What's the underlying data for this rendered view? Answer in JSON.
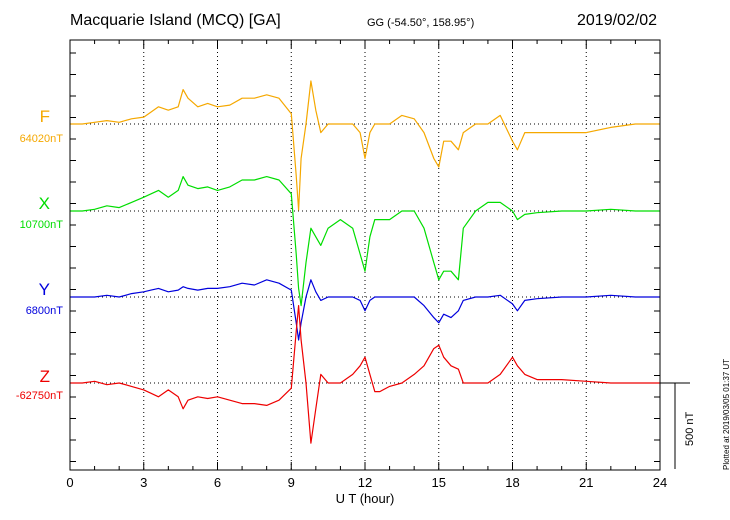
{
  "header": {
    "title": "Macquarie Island (MCQ)  [GA]",
    "coordinates": "GG (-54.50°, 158.95°)",
    "date": "2019/02/02"
  },
  "footer": {
    "plotted": "Plotted at 2019/03/05 01:37 UT"
  },
  "chart_data": {
    "type": "line",
    "xlabel": "U T (hour)",
    "xlim": [
      0,
      24
    ],
    "xticks": [
      "0",
      "3",
      "6",
      "9",
      "12",
      "15",
      "18",
      "21",
      "24"
    ],
    "ylabel": "",
    "scale_bar": "500 nT",
    "scale_bar_nT": 500,
    "grid": true,
    "series": [
      {
        "name": "F",
        "baseline": "64020nT",
        "baseline_nT": 64020,
        "color": "#f5a800",
        "x": [
          0,
          0.5,
          1,
          1.5,
          2,
          2.5,
          3,
          3.3,
          3.6,
          4,
          4.4,
          4.6,
          4.8,
          5.2,
          5.6,
          6,
          6.5,
          7,
          7.5,
          8,
          8.5,
          9,
          9.2,
          9.3,
          9.4,
          9.6,
          9.8,
          10,
          10.2,
          10.5,
          11,
          11.5,
          11.8,
          12,
          12.2,
          12.4,
          12.6,
          13,
          13.5,
          14,
          14.4,
          14.8,
          15,
          15.2,
          15.5,
          15.8,
          16,
          16.5,
          17,
          17.5,
          18,
          18.2,
          18.5,
          19,
          20,
          21,
          22,
          23,
          24
        ],
        "values": [
          0,
          0,
          10,
          20,
          10,
          30,
          40,
          70,
          100,
          80,
          100,
          200,
          150,
          100,
          120,
          100,
          110,
          150,
          150,
          170,
          150,
          60,
          -300,
          -500,
          -200,
          0,
          250,
          80,
          -50,
          0,
          0,
          0,
          -50,
          -200,
          -50,
          0,
          0,
          0,
          50,
          30,
          -50,
          -200,
          -250,
          -100,
          -100,
          -150,
          -50,
          0,
          0,
          50,
          -100,
          -150,
          -50,
          -50,
          -50,
          -50,
          -20,
          0,
          0
        ]
      },
      {
        "name": "X",
        "baseline": "10700nT",
        "baseline_nT": 10700,
        "color": "#00dd00",
        "x": [
          0,
          0.5,
          1,
          1.5,
          2,
          2.5,
          3,
          3.3,
          3.6,
          4,
          4.4,
          4.6,
          4.8,
          5.2,
          5.6,
          6,
          6.5,
          7,
          7.5,
          8,
          8.5,
          9,
          9.2,
          9.3,
          9.4,
          9.6,
          9.8,
          10,
          10.2,
          10.5,
          11,
          11.5,
          11.8,
          12,
          12.2,
          12.4,
          12.6,
          13,
          13.5,
          14,
          14.4,
          14.8,
          15,
          15.2,
          15.5,
          15.8,
          16,
          16.5,
          17,
          17.5,
          18,
          18.2,
          18.5,
          19,
          20,
          21,
          22,
          23,
          24
        ],
        "values": [
          0,
          0,
          10,
          30,
          20,
          50,
          80,
          100,
          120,
          80,
          120,
          200,
          150,
          130,
          140,
          120,
          140,
          180,
          180,
          200,
          180,
          100,
          -250,
          -450,
          -550,
          -300,
          -100,
          -150,
          -200,
          -100,
          -50,
          -100,
          -250,
          -350,
          -150,
          -50,
          -50,
          -50,
          0,
          0,
          -100,
          -300,
          -400,
          -350,
          -350,
          -400,
          -100,
          0,
          50,
          50,
          0,
          -50,
          -20,
          -10,
          0,
          0,
          10,
          0,
          0
        ]
      },
      {
        "name": "Y",
        "baseline": "6800nT",
        "baseline_nT": 6800,
        "color": "#0000dd",
        "x": [
          0,
          0.5,
          1,
          1.5,
          2,
          2.5,
          3,
          3.3,
          3.6,
          4,
          4.4,
          4.6,
          4.8,
          5.2,
          5.6,
          6,
          6.5,
          7,
          7.5,
          8,
          8.5,
          9,
          9.2,
          9.3,
          9.4,
          9.6,
          9.8,
          10,
          10.2,
          10.5,
          11,
          11.5,
          11.8,
          12,
          12.2,
          12.4,
          12.6,
          13,
          13.5,
          14,
          14.4,
          14.8,
          15,
          15.2,
          15.5,
          15.8,
          16,
          16.5,
          17,
          17.5,
          18,
          18.2,
          18.5,
          19,
          20,
          21,
          22,
          23,
          24
        ],
        "values": [
          0,
          0,
          0,
          10,
          0,
          20,
          30,
          40,
          50,
          30,
          40,
          60,
          50,
          40,
          50,
          50,
          60,
          80,
          70,
          100,
          80,
          40,
          -150,
          -250,
          -150,
          0,
          100,
          30,
          -20,
          0,
          0,
          0,
          -20,
          -80,
          -20,
          0,
          0,
          0,
          0,
          0,
          -50,
          -120,
          -150,
          -100,
          -120,
          -80,
          -20,
          0,
          0,
          10,
          -40,
          -80,
          -20,
          -10,
          0,
          0,
          10,
          0,
          0
        ]
      },
      {
        "name": "Z",
        "baseline": "-62750nT",
        "baseline_nT": -62750,
        "color": "#ee0000",
        "x": [
          0,
          0.5,
          1,
          1.5,
          2,
          2.5,
          3,
          3.3,
          3.6,
          4,
          4.4,
          4.6,
          4.8,
          5.2,
          5.6,
          6,
          6.5,
          7,
          7.5,
          8,
          8.5,
          9,
          9.2,
          9.3,
          9.4,
          9.6,
          9.8,
          10,
          10.2,
          10.5,
          11,
          11.5,
          11.8,
          12,
          12.2,
          12.4,
          12.6,
          13,
          13.5,
          14,
          14.4,
          14.8,
          15,
          15.2,
          15.5,
          15.8,
          16,
          16.5,
          17,
          17.5,
          18,
          18.2,
          18.5,
          19,
          20,
          21,
          22,
          23,
          24
        ],
        "values": [
          0,
          0,
          10,
          -10,
          0,
          -20,
          -40,
          -60,
          -80,
          -40,
          -80,
          -150,
          -100,
          -80,
          -90,
          -80,
          -100,
          -120,
          -120,
          -130,
          -100,
          -30,
          300,
          450,
          250,
          0,
          -350,
          -150,
          50,
          0,
          0,
          50,
          100,
          150,
          50,
          -50,
          -50,
          -20,
          0,
          50,
          100,
          200,
          220,
          150,
          100,
          80,
          0,
          0,
          0,
          50,
          150,
          100,
          50,
          20,
          20,
          10,
          0,
          0,
          0
        ]
      }
    ]
  }
}
